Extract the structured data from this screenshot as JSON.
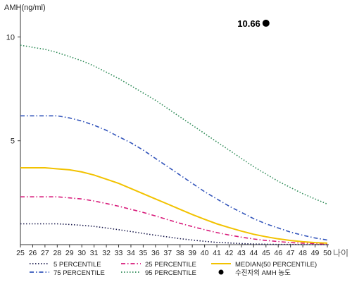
{
  "chart_data": {
    "type": "line",
    "ylabel": "AMH(ng/ml)",
    "xunit": "나이",
    "x": [
      25,
      26,
      27,
      28,
      29,
      30,
      31,
      32,
      33,
      34,
      35,
      36,
      37,
      38,
      39,
      40,
      41,
      42,
      43,
      44,
      45,
      46,
      47,
      48,
      49,
      50
    ],
    "yticks": [
      5,
      10
    ],
    "ylim": [
      0,
      11.2
    ],
    "series": [
      {
        "name": "5 PERCENTILE",
        "color": "#1a1a4d",
        "dash": "dot",
        "values": [
          1.0,
          1.0,
          1.0,
          1.0,
          0.97,
          0.93,
          0.88,
          0.8,
          0.72,
          0.63,
          0.54,
          0.45,
          0.37,
          0.29,
          0.22,
          0.16,
          0.11,
          0.08,
          0.05,
          0.03,
          0.02,
          0.01,
          0.01,
          0.0,
          0.0,
          0.0
        ]
      },
      {
        "name": "75 PERCENTILE",
        "color": "#3355bb",
        "dash": "dashdot",
        "values": [
          6.2,
          6.2,
          6.2,
          6.2,
          6.1,
          5.95,
          5.75,
          5.5,
          5.2,
          4.9,
          4.55,
          4.15,
          3.75,
          3.35,
          2.95,
          2.55,
          2.2,
          1.85,
          1.55,
          1.25,
          1.0,
          0.8,
          0.6,
          0.45,
          0.32,
          0.22
        ]
      },
      {
        "name": "25 PERCENTILE",
        "color": "#d81b7b",
        "dash": "dashdot",
        "values": [
          2.3,
          2.3,
          2.3,
          2.3,
          2.25,
          2.2,
          2.1,
          1.98,
          1.85,
          1.7,
          1.55,
          1.38,
          1.2,
          1.03,
          0.87,
          0.72,
          0.58,
          0.46,
          0.36,
          0.27,
          0.2,
          0.15,
          0.1,
          0.07,
          0.05,
          0.03
        ]
      },
      {
        "name": "95 PERCENTILE",
        "color": "#2e8b57",
        "dash": "dot",
        "values": [
          9.6,
          9.5,
          9.4,
          9.25,
          9.05,
          8.85,
          8.6,
          8.3,
          8.0,
          7.65,
          7.3,
          6.95,
          6.55,
          6.15,
          5.75,
          5.35,
          4.95,
          4.55,
          4.15,
          3.75,
          3.4,
          3.05,
          2.75,
          2.45,
          2.2,
          1.95
        ]
      },
      {
        "name": "MEDIAN(50 PERCENTILE)",
        "color": "#f2c200",
        "dash": "solid",
        "values": [
          3.7,
          3.7,
          3.7,
          3.65,
          3.6,
          3.5,
          3.35,
          3.15,
          2.95,
          2.7,
          2.45,
          2.2,
          1.95,
          1.7,
          1.45,
          1.22,
          1.0,
          0.82,
          0.65,
          0.5,
          0.38,
          0.28,
          0.2,
          0.14,
          0.1,
          0.07
        ]
      }
    ],
    "point": {
      "name": "수진자의 AMH 농도",
      "x": 45,
      "y": 10.66,
      "label": "10.66",
      "color": "#000000"
    },
    "legend_position": "bottom",
    "grid": false
  }
}
